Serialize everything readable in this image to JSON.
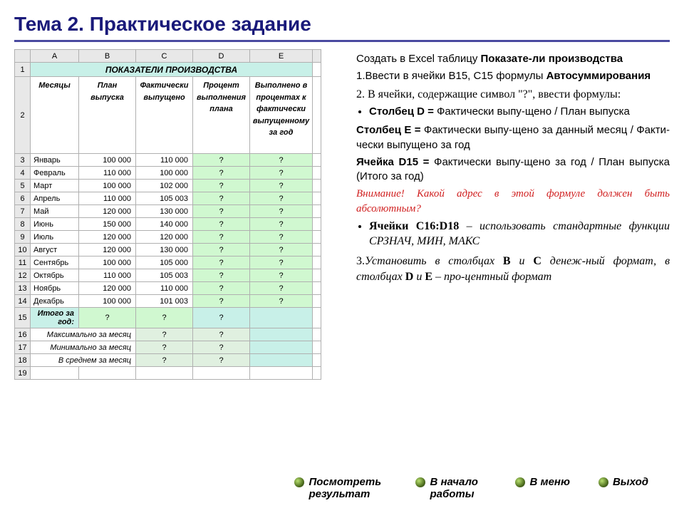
{
  "title": "Тема 2. Практическое задание",
  "spreadsheet": {
    "columns": [
      "A",
      "B",
      "C",
      "D",
      "E"
    ],
    "table_title": "ПОКАЗАТЕЛИ ПРОИЗВОДСТВА",
    "headers": [
      "Месяцы",
      "План выпуска",
      "Фактически выпущено",
      "Процент выполнения плана",
      "Выполнено в процентах к фактически выпущенному за год"
    ],
    "rows": [
      {
        "n": 3,
        "m": "Январь",
        "p": "100 000",
        "f": "110 000"
      },
      {
        "n": 4,
        "m": "Февраль",
        "p": "110 000",
        "f": "100 000"
      },
      {
        "n": 5,
        "m": "Март",
        "p": "100 000",
        "f": "102 000"
      },
      {
        "n": 6,
        "m": "Апрель",
        "p": "110 000",
        "f": "105 003"
      },
      {
        "n": 7,
        "m": "Май",
        "p": "120 000",
        "f": "130 000"
      },
      {
        "n": 8,
        "m": "Июнь",
        "p": "150 000",
        "f": "140 000"
      },
      {
        "n": 9,
        "m": "Июль",
        "p": "120 000",
        "f": "120 000"
      },
      {
        "n": 10,
        "m": "Август",
        "p": "120 000",
        "f": "130 000"
      },
      {
        "n": 11,
        "m": "Сентябрь",
        "p": "100 000",
        "f": "105 000"
      },
      {
        "n": 12,
        "m": "Октябрь",
        "p": "110 000",
        "f": "105 003"
      },
      {
        "n": 13,
        "m": "Ноябрь",
        "p": "120 000",
        "f": "110 000"
      },
      {
        "n": 14,
        "m": "Декабрь",
        "p": "100 000",
        "f": "101 003"
      }
    ],
    "total_label": "Итого за год:",
    "stat_rows": [
      {
        "n": 16,
        "label": "Максимально за месяц"
      },
      {
        "n": 17,
        "label": "Минимально за месяц"
      },
      {
        "n": 18,
        "label": "В среднем за месяц"
      }
    ],
    "colors": {
      "header_bg": "#e8e8e8",
      "title_bg": "#c8f0e8",
      "green_light": "#d0f8d0",
      "green_pale": "#e0f0e0",
      "border": "#b0b0b0"
    }
  },
  "instructions": {
    "intro_1": "Создать в Excel таблицу ",
    "intro_2": "Показате-ли производства",
    "item1_a": "Ввести в ячейки B15, C15 формулы ",
    "item1_b": "Автосуммирования",
    "item2": "В ячейки, содержащие символ \"?\", ввести формулы:",
    "bullet1_a": "Столбец D = ",
    "bullet1_b": "Фактически выпу-щено / План выпуска",
    "bullet2_a": "Столбец E = ",
    "bullet2_b": "Фактически выпу-щено за данный месяц / Факти-чески выпущено за год",
    "bullet3_a": "Ячейка D15 = ",
    "bullet3_b": "Фактически выпу-щено за год / План выпуска (Итого за год)",
    "warning": "Внимание! Какой адрес в этой формуле должен быть абсолютным?",
    "bullet4_a": "Ячейки C16:D18",
    "bullet4_b": " – использовать стандартные функции СРЗНАЧ, МИН, МАКС",
    "item3_a": "Установить в столбцах ",
    "item3_b": "B",
    "item3_c": " и ",
    "item3_d": "C",
    "item3_e": " денеж-ный формат, ",
    "item3_f": "в столбцах ",
    "item3_g": "D",
    "item3_h": " и ",
    "item3_i": "E",
    "item3_j": " – про-центный формат"
  },
  "nav": {
    "view_result": "Посмотреть результат",
    "to_start": "В начало работы",
    "to_menu": "В меню",
    "exit": "Выход"
  }
}
